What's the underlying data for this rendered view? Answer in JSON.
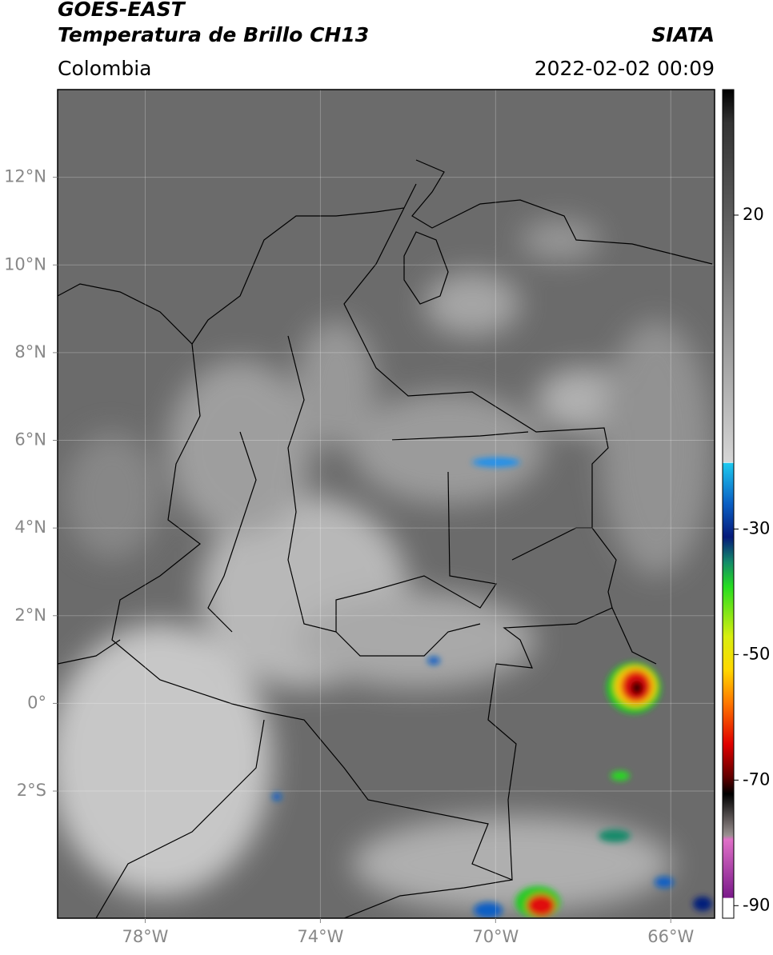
{
  "header": {
    "title_line1": "GOES-EAST",
    "title_line2": "Temperatura de Brillo CH13",
    "source": "SIATA",
    "region": "Colombia",
    "datetime": "2022-02-02 00:09"
  },
  "map": {
    "xlim": [
      -80,
      -65
    ],
    "ylim": [
      -4.9,
      14
    ],
    "xticks": [
      {
        "value": -78,
        "label": "78°W"
      },
      {
        "value": -74,
        "label": "74°W"
      },
      {
        "value": -70,
        "label": "70°W"
      },
      {
        "value": -66,
        "label": "66°W"
      }
    ],
    "yticks": [
      {
        "value": 12,
        "label": "12°N"
      },
      {
        "value": 10,
        "label": "10°N"
      },
      {
        "value": 8,
        "label": "8°N"
      },
      {
        "value": 6,
        "label": "6°N"
      },
      {
        "value": 4,
        "label": "4°N"
      },
      {
        "value": 2,
        "label": "2°N"
      },
      {
        "value": 0,
        "label": "0°"
      },
      {
        "value": -2,
        "label": "2°S"
      }
    ],
    "grid": true
  },
  "colorbar": {
    "lim": [
      -92,
      40
    ],
    "ticks": [
      20,
      -30,
      -50,
      -70,
      -90
    ]
  }
}
